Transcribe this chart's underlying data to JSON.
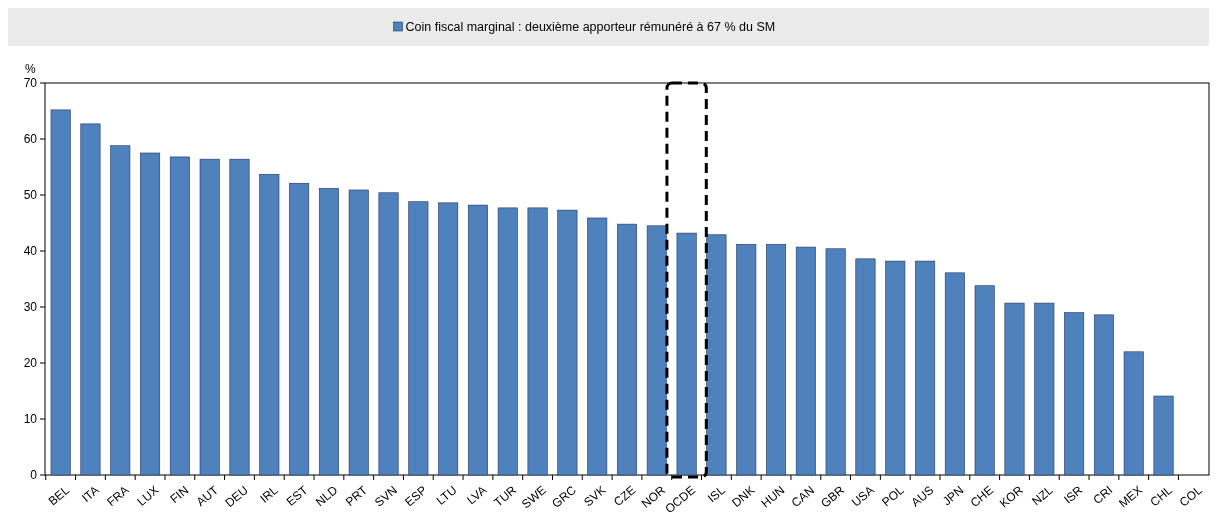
{
  "chart_data": {
    "type": "bar",
    "ylabel": "%",
    "categories": [
      "BEL",
      "ITA",
      "FRA",
      "LUX",
      "FIN",
      "AUT",
      "DEU",
      "IRL",
      "EST",
      "NLD",
      "PRT",
      "SVN",
      "ESP",
      "LTU",
      "LVA",
      "TUR",
      "SWE",
      "GRC",
      "SVK",
      "CZE",
      "NOR",
      "OCDE",
      "ISL",
      "DNK",
      "HUN",
      "CAN",
      "GBR",
      "USA",
      "POL",
      "AUS",
      "JPN",
      "CHE",
      "KOR",
      "NZL",
      "ISR",
      "CRI",
      "MEX",
      "CHL",
      "COL"
    ],
    "series": [
      {
        "name": "Coin fiscal marginal : deuxième apporteur rémunéré à 67 % du SM",
        "color": "#4f81bd",
        "values": [
          65.2,
          62.7,
          58.8,
          57.5,
          56.8,
          56.4,
          56.4,
          53.7,
          52.1,
          51.2,
          50.9,
          50.4,
          48.8,
          48.6,
          48.2,
          47.7,
          47.7,
          47.3,
          45.9,
          44.8,
          44.5,
          43.2,
          42.9,
          41.2,
          41.2,
          40.7,
          40.4,
          38.6,
          38.2,
          38.2,
          36.1,
          33.8,
          30.7,
          30.7,
          29.0,
          28.6,
          22.0,
          14.1,
          0
        ]
      }
    ],
    "ylim": [
      0,
      70
    ],
    "yticks": [
      0,
      10,
      20,
      30,
      40,
      50,
      60,
      70
    ],
    "grid": false,
    "legend": "top"
  }
}
